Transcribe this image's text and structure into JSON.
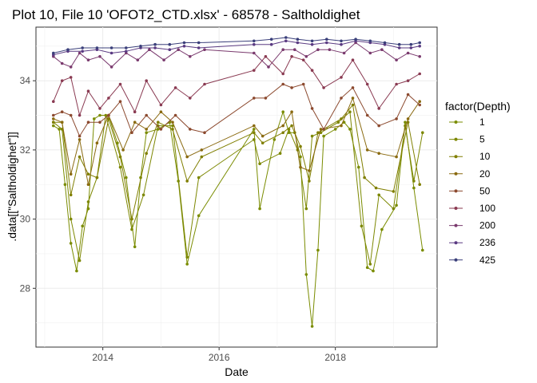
{
  "chart_data": {
    "type": "line",
    "title": "Plot 10, File 10 'OFOT2_CTD.xlsx' - 68578  -  Saltholdighet",
    "xlabel": "Date",
    "ylabel": ".data[[\"Saltholdighet\"]]",
    "x_ticks": [
      "2014",
      "2016",
      "2018"
    ],
    "y_ticks": [
      "28",
      "30",
      "32",
      "34"
    ],
    "xlim": [
      2012.85,
      2019.75
    ],
    "ylim": [
      26.3,
      35.55
    ],
    "grid": true,
    "legend_position": "right",
    "legend_title": "factor(Depth)",
    "series": [
      {
        "name": "1",
        "color": "#7a8c00",
        "x": [
          2013.15,
          2013.25,
          2013.35,
          2013.45,
          2013.55,
          2013.65,
          2013.75,
          2013.85,
          2013.95,
          2014.1,
          2014.25,
          2014.4,
          2014.55,
          2014.65,
          2014.75,
          2014.95,
          2015.15,
          2015.3,
          2015.45,
          2015.65,
          2016.6,
          2016.7,
          2016.95,
          2017.1,
          2017.2,
          2017.3,
          2017.4,
          2017.5,
          2017.6,
          2017.7,
          2017.8,
          2018.0,
          2018.15,
          2018.25,
          2018.4,
          2018.55,
          2018.65,
          2018.8,
          2019.05,
          2019.2,
          2019.35,
          2019.5
        ],
        "values": [
          32.7,
          32.6,
          31.0,
          29.3,
          28.5,
          29.8,
          30.3,
          32.9,
          33.0,
          33.0,
          32.2,
          31.2,
          29.2,
          31.2,
          32.5,
          32.6,
          32.8,
          31.1,
          28.7,
          30.1,
          32.6,
          30.3,
          32.3,
          33.1,
          32.5,
          32.5,
          31.8,
          28.4,
          26.9,
          29.1,
          32.4,
          32.6,
          32.8,
          32.6,
          31.5,
          28.6,
          28.5,
          29.7,
          30.4,
          32.8,
          30.9,
          29.1
        ]
      },
      {
        "name": "5",
        "color": "#7c8700",
        "x": [
          2013.15,
          2013.3,
          2013.45,
          2013.6,
          2013.75,
          2013.9,
          2014.05,
          2014.3,
          2014.5,
          2014.7,
          2014.95,
          2015.2,
          2015.45,
          2015.65,
          2016.6,
          2016.7,
          2017.05,
          2017.2,
          2017.35,
          2017.5,
          2017.6,
          2017.75,
          2018.05,
          2018.25,
          2018.45,
          2018.6,
          2018.75,
          2019.0,
          2019.2,
          2019.35,
          2019.5
        ],
        "values": [
          32.8,
          32.6,
          30.0,
          28.8,
          30.5,
          31.2,
          33.0,
          31.5,
          29.7,
          30.7,
          32.7,
          32.7,
          28.9,
          31.2,
          32.3,
          31.6,
          31.9,
          32.6,
          32.0,
          30.3,
          32.4,
          32.5,
          32.8,
          33.1,
          29.8,
          28.7,
          30.7,
          30.3,
          32.7,
          31.1,
          32.5
        ]
      },
      {
        "name": "10",
        "color": "#807f00",
        "x": [
          2013.15,
          2013.3,
          2013.45,
          2013.6,
          2013.75,
          2013.9,
          2014.1,
          2014.3,
          2014.5,
          2014.75,
          2014.95,
          2015.2,
          2015.45,
          2015.7,
          2016.6,
          2016.75,
          2017.1,
          2017.25,
          2017.4,
          2017.55,
          2017.7,
          2018.1,
          2018.3,
          2018.5,
          2018.7,
          2019.0,
          2019.25,
          2019.45
        ],
        "values": [
          32.8,
          32.8,
          30.7,
          31.8,
          31.3,
          31.2,
          32.9,
          31.8,
          30.0,
          31.9,
          32.8,
          32.6,
          31.1,
          31.8,
          32.5,
          32.2,
          32.5,
          32.7,
          32.1,
          31.1,
          32.5,
          32.9,
          33.3,
          31.2,
          30.9,
          30.8,
          32.8,
          31.0
        ]
      },
      {
        "name": "20",
        "color": "#8a6a10",
        "x": [
          2013.15,
          2013.3,
          2013.45,
          2013.6,
          2013.75,
          2013.9,
          2014.1,
          2014.35,
          2014.55,
          2014.75,
          2015.0,
          2015.2,
          2015.45,
          2015.7,
          2016.6,
          2016.75,
          2017.1,
          2017.25,
          2017.4,
          2017.55,
          2017.75,
          2018.1,
          2018.3,
          2018.55,
          2018.75,
          2019.05,
          2019.25,
          2019.45
        ],
        "values": [
          32.9,
          32.8,
          31.3,
          32.3,
          31.0,
          32.2,
          33.0,
          32.0,
          32.8,
          32.6,
          33.1,
          32.8,
          31.8,
          32.0,
          32.7,
          32.4,
          32.7,
          33.1,
          31.5,
          31.4,
          32.6,
          32.7,
          33.5,
          32.0,
          31.9,
          31.8,
          32.9,
          33.4
        ]
      },
      {
        "name": "50",
        "color": "#8c4a2f",
        "x": [
          2013.15,
          2013.3,
          2013.45,
          2013.6,
          2013.75,
          2013.95,
          2014.1,
          2014.3,
          2014.5,
          2014.75,
          2015.0,
          2015.25,
          2015.5,
          2015.75,
          2016.6,
          2016.8,
          2017.1,
          2017.25,
          2017.45,
          2017.6,
          2017.8,
          2018.1,
          2018.3,
          2018.55,
          2018.75,
          2019.05,
          2019.25,
          2019.45
        ],
        "values": [
          33.0,
          33.1,
          33.0,
          32.4,
          32.8,
          32.8,
          33.0,
          33.4,
          32.5,
          33.0,
          32.6,
          33.0,
          32.6,
          32.5,
          33.5,
          33.5,
          33.9,
          33.8,
          33.9,
          33.2,
          32.6,
          33.5,
          33.8,
          33.0,
          32.7,
          32.9,
          33.6,
          33.3
        ]
      },
      {
        "name": "100",
        "color": "#8a3a52",
        "x": [
          2013.15,
          2013.3,
          2013.45,
          2013.6,
          2013.75,
          2013.95,
          2014.1,
          2014.3,
          2014.55,
          2014.75,
          2015.0,
          2015.25,
          2015.5,
          2015.75,
          2016.6,
          2016.8,
          2017.1,
          2017.25,
          2017.45,
          2017.6,
          2017.8,
          2018.1,
          2018.3,
          2018.55,
          2018.75,
          2019.05,
          2019.25,
          2019.45
        ],
        "values": [
          33.4,
          34.0,
          34.1,
          33.0,
          33.7,
          33.2,
          33.5,
          33.9,
          33.1,
          34.0,
          33.3,
          33.8,
          33.5,
          33.9,
          34.3,
          34.7,
          34.2,
          34.7,
          34.6,
          34.3,
          33.8,
          34.1,
          34.6,
          33.9,
          33.2,
          33.9,
          34.0,
          34.2
        ]
      },
      {
        "name": "200",
        "color": "#7a3a6e",
        "x": [
          2013.15,
          2013.3,
          2013.45,
          2013.6,
          2013.75,
          2013.95,
          2014.15,
          2014.4,
          2014.6,
          2014.8,
          2015.05,
          2015.3,
          2015.5,
          2015.75,
          2016.6,
          2016.85,
          2017.1,
          2017.3,
          2017.5,
          2017.7,
          2017.9,
          2018.15,
          2018.35,
          2018.6,
          2018.8,
          2019.05,
          2019.25,
          2019.45
        ],
        "values": [
          34.7,
          34.5,
          34.4,
          34.8,
          34.6,
          34.7,
          34.4,
          34.8,
          34.6,
          34.9,
          34.6,
          34.9,
          34.7,
          34.9,
          34.8,
          34.4,
          34.9,
          34.9,
          34.7,
          34.9,
          34.9,
          34.8,
          35.1,
          34.8,
          34.9,
          34.6,
          34.8,
          34.7
        ]
      },
      {
        "name": "236",
        "color": "#5a3a82",
        "x": [
          2013.15,
          2013.4,
          2013.65,
          2013.9,
          2014.15,
          2014.4,
          2014.65,
          2014.9,
          2015.15,
          2015.4,
          2015.65,
          2016.6,
          2016.9,
          2017.15,
          2017.35,
          2017.6,
          2017.85,
          2018.1,
          2018.35,
          2018.6,
          2018.85,
          2019.1,
          2019.3,
          2019.45
        ],
        "values": [
          34.75,
          34.85,
          34.85,
          34.9,
          34.8,
          34.85,
          34.95,
          34.95,
          34.9,
          35.0,
          34.95,
          35.05,
          35.05,
          35.15,
          35.1,
          35.05,
          35.1,
          35.05,
          35.15,
          35.1,
          35.05,
          34.95,
          34.95,
          35.0
        ]
      },
      {
        "name": "425",
        "color": "#3a3f7a",
        "x": [
          2013.15,
          2013.4,
          2013.65,
          2013.9,
          2014.15,
          2014.4,
          2014.65,
          2014.9,
          2015.15,
          2015.4,
          2015.65,
          2016.6,
          2016.9,
          2017.15,
          2017.35,
          2017.6,
          2017.85,
          2018.1,
          2018.35,
          2018.6,
          2018.85,
          2019.1,
          2019.3,
          2019.45
        ],
        "values": [
          34.8,
          34.9,
          34.95,
          34.95,
          34.95,
          34.95,
          35.0,
          35.05,
          35.05,
          35.1,
          35.1,
          35.15,
          35.2,
          35.25,
          35.2,
          35.15,
          35.2,
          35.15,
          35.2,
          35.15,
          35.1,
          35.05,
          35.05,
          35.1
        ]
      }
    ]
  }
}
